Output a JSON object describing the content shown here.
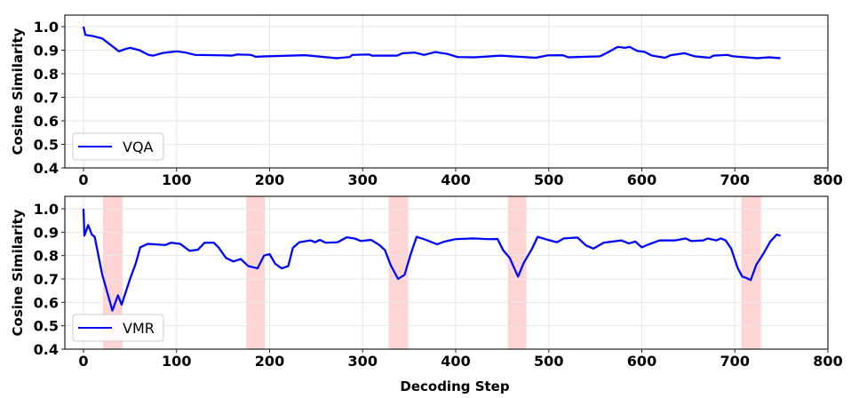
{
  "chart_data": [
    {
      "type": "line",
      "panel": "top",
      "title": "",
      "xlabel": "",
      "ylabel": "Cosine Similarity",
      "xlim": [
        -20,
        800
      ],
      "ylim": [
        0.4,
        1.05
      ],
      "xticks": [
        0,
        100,
        200,
        300,
        400,
        500,
        600,
        700,
        800
      ],
      "yticks": [
        0.4,
        0.5,
        0.6,
        0.7,
        0.8,
        0.9,
        1.0
      ],
      "xtick_labels": [
        "0",
        "100",
        "200",
        "300",
        "400",
        "500",
        "600",
        "700",
        "800"
      ],
      "ytick_labels": [
        "0.4",
        "0.5",
        "0.6",
        "0.7",
        "0.8",
        "0.9",
        "1.0"
      ],
      "grid": true,
      "legend": {
        "position": "lower left",
        "entries": [
          "VQA"
        ]
      },
      "highlight_spans": [],
      "series": [
        {
          "name": "VQA",
          "color": "#0000ff",
          "x": [
            0,
            2,
            10,
            15,
            20,
            30,
            38,
            45,
            50,
            60,
            70,
            75,
            85,
            95,
            100,
            110,
            120,
            150,
            160,
            165,
            180,
            185,
            197,
            238,
            272,
            286,
            289,
            307,
            310,
            337,
            343,
            356,
            366,
            378,
            391,
            402,
            420,
            448,
            486,
            499,
            515,
            521,
            555,
            564,
            574,
            582,
            587,
            595,
            603,
            611,
            625,
            631,
            646,
            657,
            673,
            677,
            692,
            698,
            724,
            737,
            749
          ],
          "y": [
            1.0,
            0.965,
            0.96,
            0.955,
            0.95,
            0.92,
            0.895,
            0.905,
            0.91,
            0.9,
            0.88,
            0.877,
            0.888,
            0.893,
            0.895,
            0.89,
            0.88,
            0.878,
            0.877,
            0.882,
            0.88,
            0.872,
            0.874,
            0.879,
            0.866,
            0.871,
            0.88,
            0.882,
            0.877,
            0.877,
            0.887,
            0.89,
            0.88,
            0.892,
            0.884,
            0.871,
            0.87,
            0.877,
            0.868,
            0.878,
            0.879,
            0.87,
            0.874,
            0.892,
            0.914,
            0.91,
            0.914,
            0.897,
            0.893,
            0.877,
            0.868,
            0.879,
            0.887,
            0.874,
            0.868,
            0.877,
            0.88,
            0.874,
            0.866,
            0.87,
            0.866
          ]
        }
      ]
    },
    {
      "type": "line",
      "panel": "bottom",
      "title": "",
      "xlabel": "Decoding Step",
      "ylabel": "Cosine Similarity",
      "xlim": [
        -20,
        800
      ],
      "ylim": [
        0.4,
        1.05
      ],
      "xticks": [
        0,
        100,
        200,
        300,
        400,
        500,
        600,
        700,
        800
      ],
      "yticks": [
        0.4,
        0.5,
        0.6,
        0.7,
        0.8,
        0.9,
        1.0
      ],
      "xtick_labels": [
        "0",
        "100",
        "200",
        "300",
        "400",
        "500",
        "600",
        "700",
        "800"
      ],
      "ytick_labels": [
        "0.4",
        "0.5",
        "0.6",
        "0.7",
        "0.8",
        "0.9",
        "1.0"
      ],
      "grid": true,
      "legend": {
        "position": "lower left",
        "entries": [
          "VMR"
        ]
      },
      "highlight_spans": [
        [
          21,
          42
        ],
        [
          175,
          195
        ],
        [
          328,
          349
        ],
        [
          456,
          476
        ],
        [
          707,
          728
        ]
      ],
      "highlight_color": "#ffcccc",
      "series": [
        {
          "name": "VMR",
          "color": "#0000ff",
          "x": [
            0,
            1,
            5,
            9,
            12,
            20,
            25,
            31,
            37,
            41,
            50,
            56,
            61,
            69,
            88,
            94,
            104,
            114,
            123,
            130,
            140,
            145,
            153,
            161,
            169,
            177,
            187,
            194,
            200,
            206,
            213,
            220,
            225,
            232,
            244,
            249,
            254,
            260,
            273,
            283,
            292,
            298,
            309,
            318,
            324,
            330,
            338,
            345,
            352,
            358,
            368,
            380,
            388,
            400,
            419,
            435,
            445,
            451,
            458,
            467,
            473,
            482,
            488,
            499,
            509,
            516,
            531,
            540,
            548,
            559,
            578,
            586,
            593,
            600,
            607,
            619,
            636,
            647,
            653,
            666,
            671,
            680,
            685,
            690,
            696,
            703,
            708,
            712,
            717,
            723,
            731,
            738,
            745,
            749
          ],
          "y": [
            1.0,
            0.885,
            0.93,
            0.89,
            0.88,
            0.72,
            0.65,
            0.565,
            0.63,
            0.59,
            0.7,
            0.765,
            0.835,
            0.85,
            0.845,
            0.855,
            0.85,
            0.82,
            0.825,
            0.855,
            0.855,
            0.835,
            0.79,
            0.775,
            0.785,
            0.755,
            0.745,
            0.8,
            0.806,
            0.765,
            0.745,
            0.755,
            0.833,
            0.857,
            0.865,
            0.857,
            0.867,
            0.855,
            0.857,
            0.878,
            0.872,
            0.862,
            0.867,
            0.845,
            0.823,
            0.76,
            0.7,
            0.718,
            0.81,
            0.88,
            0.867,
            0.848,
            0.86,
            0.87,
            0.873,
            0.87,
            0.871,
            0.823,
            0.79,
            0.71,
            0.768,
            0.829,
            0.88,
            0.867,
            0.857,
            0.873,
            0.877,
            0.843,
            0.83,
            0.855,
            0.865,
            0.852,
            0.86,
            0.835,
            0.847,
            0.865,
            0.865,
            0.873,
            0.862,
            0.865,
            0.873,
            0.865,
            0.873,
            0.865,
            0.83,
            0.747,
            0.71,
            0.705,
            0.695,
            0.76,
            0.81,
            0.86,
            0.89,
            0.885
          ]
        }
      ]
    }
  ],
  "panels": {
    "top": {
      "ylabel": "Cosine Similarity",
      "legend_label": "VQA"
    },
    "bottom": {
      "ylabel": "Cosine Similarity",
      "legend_label": "VMR",
      "xlabel": "Decoding Step"
    }
  }
}
